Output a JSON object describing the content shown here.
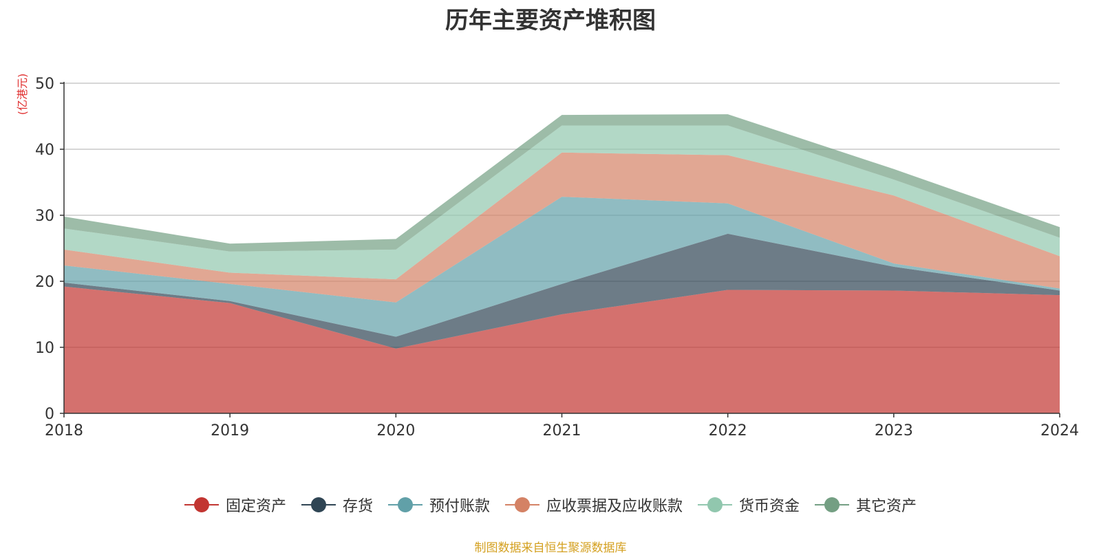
{
  "chart_data": {
    "type": "area",
    "stacked": true,
    "title": "历年主要资产堆积图",
    "unit_label": "(亿港元)",
    "x": [
      "2018",
      "2019",
      "2020",
      "2021",
      "2022",
      "2023",
      "2024"
    ],
    "ylim": [
      0,
      50
    ],
    "yticks": [
      0,
      10,
      20,
      30,
      40,
      50
    ],
    "grid": true,
    "legend_position": "bottom",
    "series": [
      {
        "name": "固定资产",
        "color": "#c23531",
        "values": [
          19.2,
          16.7,
          9.8,
          15.0,
          18.7,
          18.6,
          17.9
        ]
      },
      {
        "name": "存货",
        "color": "#2f4554",
        "values": [
          0.6,
          0.3,
          1.8,
          4.6,
          8.5,
          3.6,
          0.7
        ]
      },
      {
        "name": "预付账款",
        "color": "#61a0a8",
        "values": [
          2.6,
          2.6,
          5.2,
          13.2,
          4.6,
          0.5,
          0.3
        ]
      },
      {
        "name": "应收票据及应收账款",
        "color": "#d48265",
        "values": [
          2.4,
          1.7,
          3.5,
          6.7,
          7.3,
          10.3,
          4.9
        ]
      },
      {
        "name": "货币资金",
        "color": "#91c7ae",
        "values": [
          3.2,
          3.2,
          4.5,
          4.1,
          4.5,
          2.4,
          2.8
        ]
      },
      {
        "name": "其它资产",
        "color": "#749f83",
        "values": [
          1.8,
          1.2,
          1.6,
          1.6,
          1.7,
          1.6,
          1.6
        ]
      }
    ]
  },
  "source_text": "制图数据来自恒生聚源数据库"
}
